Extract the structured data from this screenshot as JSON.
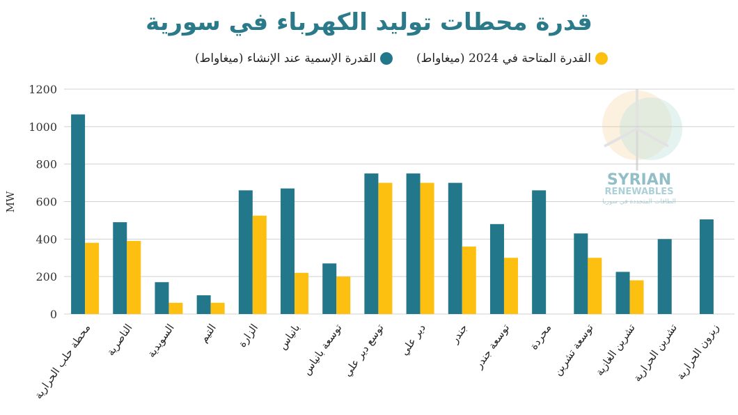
{
  "chart_data": {
    "type": "bar",
    "title": "قدرة محطات توليد الكهرباء في سورية",
    "ylabel": "MW",
    "xlabel": "",
    "ylim": [
      0,
      1200
    ],
    "yticks": [
      0,
      200,
      400,
      600,
      800,
      1000,
      1200
    ],
    "grid": true,
    "legend_position": "top",
    "categories": [
      "محطة حلب الحرارية",
      "الناصرية",
      "السويدية",
      "التيم",
      "الزارة",
      "بانياس",
      "توسعة بانياس",
      "توسع دير علي",
      "دير علي",
      "جندر",
      "توسعة جندر",
      "محردة",
      "توسعة تشرين",
      "تشرين الغازية",
      "تشرين الحرارية",
      "زيزون الحرارية"
    ],
    "series": [
      {
        "name": "القدرة الإسمية عند الإنشاء (ميغاواط)",
        "color": "#22788a",
        "values": [
          1065,
          490,
          170,
          100,
          660,
          670,
          270,
          750,
          750,
          700,
          480,
          660,
          430,
          225,
          400,
          505
        ]
      },
      {
        "name": "القدرة المتاحة في 2024 (ميغاواط)",
        "color": "#fdc010",
        "values": [
          380,
          390,
          60,
          60,
          525,
          220,
          200,
          700,
          700,
          360,
          300,
          0,
          300,
          180,
          0,
          0
        ]
      }
    ]
  },
  "watermark": {
    "line1": "SYRIAN",
    "line2": "RENEWABLES",
    "line3": "الطاقات المتجددة في سوريا"
  }
}
